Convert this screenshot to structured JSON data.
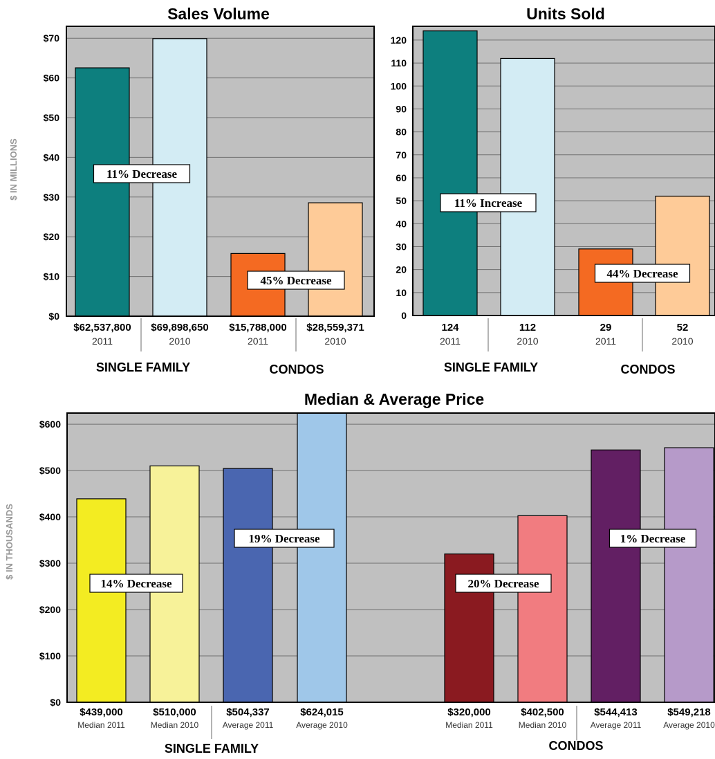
{
  "colors": {
    "plot_bg": "#c0c0c0",
    "grid": "#6f6f6f",
    "axis": "#000000",
    "sf_2011": "#0d7f7e",
    "sf_2010": "#d3ecf4",
    "condo_2011": "#f46a22",
    "condo_2010": "#fecb98",
    "median_sf_2011": "#f3ec22",
    "median_sf_2010": "#f7f299",
    "avg_sf_2011": "#4a66b0",
    "avg_sf_2010": "#9fc7e9",
    "median_condo_2011": "#8a1a20",
    "median_condo_2010": "#f17c80",
    "avg_condo_2011": "#621f63",
    "avg_condo_2010": "#b69ac9"
  },
  "chart_data": [
    {
      "id": "sales",
      "type": "bar",
      "title": "Sales Volume",
      "ylabel": "$ IN MILLIONS",
      "ylim": [
        0,
        73
      ],
      "yticks": [
        0,
        10,
        20,
        30,
        40,
        50,
        60,
        70
      ],
      "ytick_labels": [
        "$0",
        "$10",
        "$20",
        "$30",
        "$40",
        "$50",
        "$60",
        "$70"
      ],
      "grid": true,
      "categories": [
        "2011",
        "2010",
        "2011",
        "2010"
      ],
      "values": [
        62.5378,
        69.89865,
        15.788,
        28.559371
      ],
      "value_labels": [
        "$62,537,800",
        "$69,898,650",
        "$15,788,000",
        "$28,559,371"
      ],
      "bar_colors": [
        "#0d7f7e",
        "#d3ecf4",
        "#f46a22",
        "#fecb98"
      ],
      "groups": [
        "SINGLE FAMILY",
        "CONDOS"
      ],
      "annotations": [
        "11% Decrease",
        "45% Decrease"
      ]
    },
    {
      "id": "units",
      "type": "bar",
      "title": "Units Sold",
      "ylim": [
        0,
        126
      ],
      "yticks": [
        0,
        10,
        20,
        30,
        40,
        50,
        60,
        70,
        80,
        90,
        100,
        110,
        120
      ],
      "ytick_labels": [
        "0",
        "10",
        "20",
        "30",
        "40",
        "50",
        "60",
        "70",
        "80",
        "90",
        "100",
        "110",
        "120"
      ],
      "grid": true,
      "categories": [
        "2011",
        "2010",
        "2011",
        "2010"
      ],
      "values": [
        124,
        112,
        29,
        52
      ],
      "value_labels": [
        "124",
        "112",
        "29",
        "52"
      ],
      "bar_colors": [
        "#0d7f7e",
        "#d3ecf4",
        "#f46a22",
        "#fecb98"
      ],
      "groups": [
        "SINGLE FAMILY",
        "CONDOS"
      ],
      "annotations": [
        "11% Increase",
        "44% Decrease"
      ]
    },
    {
      "id": "price",
      "type": "bar",
      "title": "Median & Average Price",
      "ylabel": "$ IN THOUSANDS",
      "ylim": [
        0,
        624
      ],
      "yticks": [
        0,
        100,
        200,
        300,
        400,
        500,
        600
      ],
      "ytick_labels": [
        "$0",
        "$100",
        "$200",
        "$300",
        "$400",
        "$500",
        "$600"
      ],
      "grid": true,
      "categories": [
        "Median 2011",
        "Median 2010",
        "Average 2011",
        "Average 2010",
        "Median 2011",
        "Median 2010",
        "Average 2011",
        "Average 2010"
      ],
      "values": [
        439,
        510,
        504.337,
        624.015,
        320,
        402.5,
        544.413,
        549.218
      ],
      "value_labels": [
        "$439,000",
        "$510,000",
        "$504,337",
        "$624,015",
        "$320,000",
        "$402,500",
        "$544,413",
        "$549,218"
      ],
      "bar_colors": [
        "#f3ec22",
        "#f7f299",
        "#4a66b0",
        "#9fc7e9",
        "#8a1a20",
        "#f17c80",
        "#621f63",
        "#b69ac9"
      ],
      "groups": [
        "SINGLE FAMILY",
        "CONDOS"
      ],
      "annotations": [
        "14% Decrease",
        "19% Decrease",
        "20% Decrease",
        "1% Decrease"
      ]
    }
  ]
}
